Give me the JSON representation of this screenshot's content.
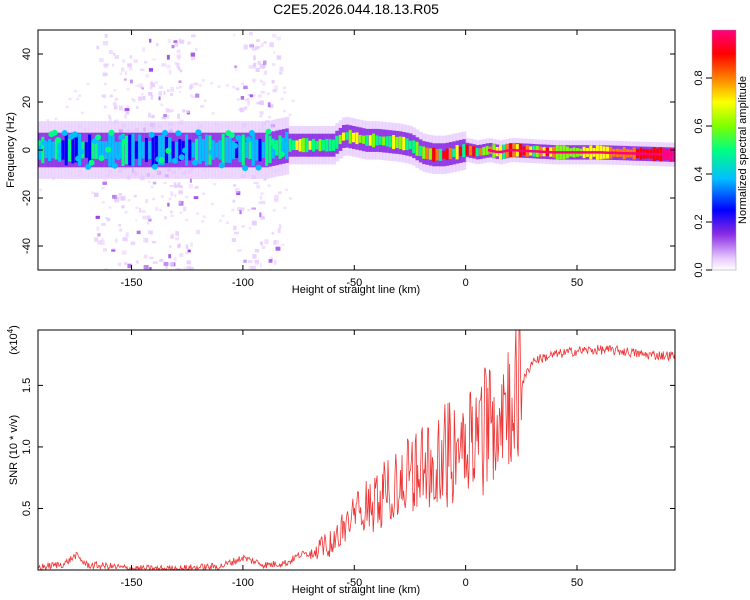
{
  "title": "C2E5.2026.044.18.13.R05",
  "chart_data": [
    {
      "type": "heatmap",
      "name": "spectrogram",
      "xlabel": "Height of straight line (km)",
      "ylabel": "Frequency (Hz)",
      "xlim": [
        -192,
        94
      ],
      "ylim": [
        -50,
        50
      ],
      "xticks": [
        -150,
        -100,
        -50,
        0,
        50
      ],
      "yticks": [
        -40,
        -20,
        0,
        20,
        40
      ],
      "colorbar": {
        "label": "Normalized spectral amplitude",
        "range": [
          0,
          1
        ],
        "ticks": [
          0.0,
          0.2,
          0.4,
          0.6,
          0.8
        ],
        "colors": [
          "#ffffff",
          "#e6c8ff",
          "#8a2be2",
          "#0000ff",
          "#00bfff",
          "#00ff80",
          "#7fff00",
          "#ffff00",
          "#ff8000",
          "#ff0000",
          "#ff0080"
        ]
      },
      "ridge": [
        [
          -192,
          0
        ],
        [
          -90,
          0
        ],
        [
          -80,
          2
        ],
        [
          -60,
          2
        ],
        [
          -55,
          6
        ],
        [
          -45,
          4
        ],
        [
          -40,
          4
        ],
        [
          -30,
          3
        ],
        [
          -25,
          2
        ],
        [
          -20,
          -1
        ],
        [
          -15,
          -2
        ],
        [
          -10,
          -2
        ],
        [
          0,
          0
        ],
        [
          5,
          -1
        ],
        [
          10,
          0
        ],
        [
          15,
          -1
        ],
        [
          20,
          0
        ],
        [
          40,
          -1
        ],
        [
          60,
          -1
        ],
        [
          94,
          -2
        ]
      ],
      "vertical_bands": [
        -160,
        -148,
        -135,
        -128,
        -98,
        -90
      ]
    },
    {
      "type": "line",
      "name": "snr",
      "xlabel": "Height of straight line (km)",
      "ylabel": "SNR (10 * v/v)",
      "yscale_label": "(x10",
      "yscale_exponent": "4",
      "xlim": [
        -192,
        94
      ],
      "ylim": [
        0,
        1.95
      ],
      "xticks": [
        -150,
        -100,
        -50,
        0,
        50
      ],
      "yticks": [
        0.5,
        1.0,
        1.5
      ],
      "color": "#ee3333",
      "series": [
        {
          "name": "SNR",
          "x": [
            -192,
            -180,
            -175,
            -170,
            -160,
            -150,
            -130,
            -110,
            -100,
            -95,
            -90,
            -80,
            -75,
            -70,
            -60,
            -50,
            -40,
            -30,
            -20,
            -10,
            0,
            5,
            10,
            15,
            20,
            25,
            30,
            40,
            50,
            60,
            70,
            80,
            94
          ],
          "y": [
            0.02,
            0.05,
            0.12,
            0.04,
            0.03,
            0.01,
            0.01,
            0.03,
            0.1,
            0.07,
            0.04,
            0.06,
            0.12,
            0.14,
            0.22,
            0.45,
            0.6,
            0.7,
            0.85,
            0.95,
            1.1,
            1.15,
            1.2,
            1.35,
            1.4,
            1.5,
            1.7,
            1.75,
            1.78,
            1.79,
            1.78,
            1.75,
            1.74
          ]
        }
      ]
    }
  ]
}
